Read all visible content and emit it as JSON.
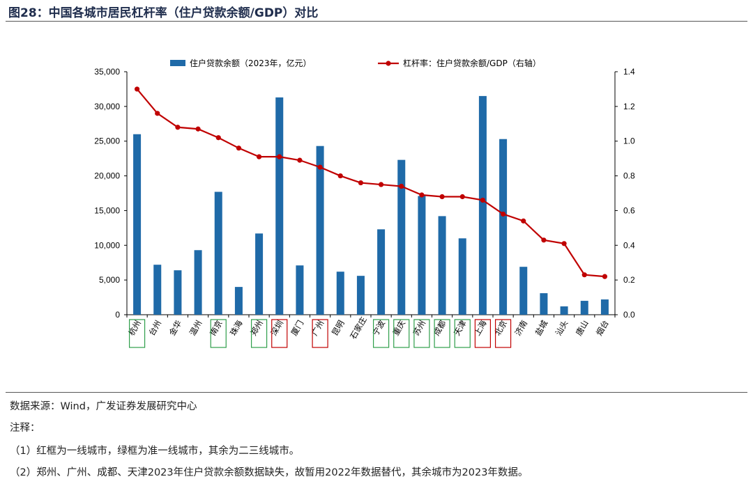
{
  "header": {
    "title": "图28：中国各城市居民杠杆率（住户贷款余额/GDP）对比"
  },
  "chart_data": {
    "type": "bar",
    "categories": [
      "杭州",
      "台州",
      "金华",
      "温州",
      "南京",
      "珠海",
      "郑州",
      "深圳",
      "厦门",
      "广州",
      "昆明",
      "石家庄",
      "宁波",
      "重庆",
      "苏州",
      "成都",
      "天津",
      "上海",
      "北京",
      "济南",
      "盐城",
      "汕头",
      "唐山",
      "烟台"
    ],
    "series": [
      {
        "name": "住户贷款余额（2023年，亿元）",
        "type": "bar",
        "axis": "left",
        "color": "#1f6aa8",
        "values": [
          26000,
          7200,
          6400,
          9300,
          17700,
          4000,
          11700,
          31300,
          7100,
          24300,
          6200,
          5600,
          12300,
          22300,
          17100,
          14200,
          11000,
          31500,
          25300,
          6900,
          3100,
          1200,
          2000,
          2200
        ]
      },
      {
        "name": "杠杆率：住户贷款余额/GDP（右轴）",
        "type": "line",
        "axis": "right",
        "color": "#c00000",
        "values": [
          1.3,
          1.16,
          1.08,
          1.07,
          1.02,
          0.96,
          0.91,
          0.91,
          0.89,
          0.85,
          0.8,
          0.76,
          0.75,
          0.74,
          0.69,
          0.68,
          0.68,
          0.66,
          0.58,
          0.54,
          0.43,
          0.41,
          0.23,
          0.22
        ]
      }
    ],
    "y_left": {
      "min": 0,
      "max": 35000,
      "ticks": [
        "0",
        "5,000",
        "10,000",
        "15,000",
        "20,000",
        "25,000",
        "30,000",
        "35,000"
      ]
    },
    "y_right": {
      "min": 0,
      "max": 1.4,
      "ticks": [
        "0.0",
        "0.2",
        "0.4",
        "0.6",
        "0.8",
        "1.0",
        "1.2",
        "1.4"
      ]
    },
    "grid": false,
    "legend": "top",
    "highlight_boxes": {
      "red_color": "#c00000",
      "green_color": "#2e9e4a",
      "red": [
        "深圳",
        "广州",
        "上海",
        "北京"
      ],
      "green": [
        "杭州",
        "南京",
        "郑州",
        "宁波",
        "重庆",
        "苏州",
        "成都",
        "天津"
      ]
    }
  },
  "footer": {
    "source": "数据来源：Wind，广发证券发展研究中心",
    "note_title": "注释：",
    "note1": "（1）红框为一线城市，绿框为准一线城市，其余为二三线城市。",
    "note2": "（2）郑州、广州、成都、天津2023年住户贷款余额数据缺失，故暂用2022年数据替代，其余城市为2023年数据。"
  }
}
